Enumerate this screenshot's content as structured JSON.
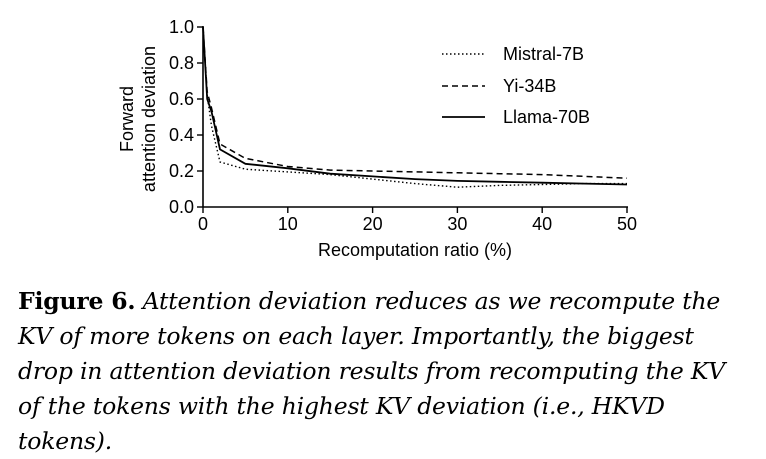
{
  "chart_data": {
    "type": "line",
    "xlabel": "Recomputation ratio (%)",
    "ylabel_lines": [
      "Forward",
      "attention deviation"
    ],
    "xlim": [
      0,
      50
    ],
    "ylim": [
      0.0,
      1.0
    ],
    "xticks": [
      "0",
      "10",
      "20",
      "30",
      "40",
      "50"
    ],
    "xtick_values": [
      0,
      10,
      20,
      30,
      40,
      50
    ],
    "yticks": [
      "0.0",
      "0.2",
      "0.4",
      "0.6",
      "0.8",
      "1.0"
    ],
    "ytick_values": [
      0.0,
      0.2,
      0.4,
      0.6,
      0.8,
      1.0
    ],
    "grid": false,
    "legend_position": "top-right",
    "series": [
      {
        "name": "Mistral-7B",
        "style": "dotted",
        "x": [
          0,
          0.5,
          1,
          2,
          5,
          10,
          15,
          20,
          25,
          30,
          35,
          40,
          45,
          50
        ],
        "y": [
          1.0,
          0.62,
          0.45,
          0.25,
          0.21,
          0.195,
          0.18,
          0.155,
          0.13,
          0.11,
          0.12,
          0.125,
          0.13,
          0.13
        ]
      },
      {
        "name": "Yi-34B",
        "style": "dashed",
        "x": [
          0,
          0.5,
          1,
          2,
          5,
          10,
          15,
          20,
          25,
          30,
          35,
          40,
          45,
          50
        ],
        "y": [
          1.0,
          0.64,
          0.55,
          0.35,
          0.27,
          0.225,
          0.205,
          0.2,
          0.195,
          0.19,
          0.185,
          0.18,
          0.17,
          0.16
        ]
      },
      {
        "name": "Llama-70B",
        "style": "solid",
        "x": [
          0,
          0.5,
          1,
          2,
          5,
          10,
          15,
          20,
          25,
          30,
          35,
          40,
          45,
          50
        ],
        "y": [
          1.0,
          0.6,
          0.53,
          0.32,
          0.24,
          0.215,
          0.185,
          0.17,
          0.155,
          0.145,
          0.14,
          0.135,
          0.13,
          0.125
        ]
      }
    ]
  },
  "caption": {
    "label": "Figure 6.",
    "text": "Attention deviation reduces as we recompute the KV of more tokens on each layer. Importantly, the biggest drop in attention deviation results from recomputing the KV of the tokens with the highest KV deviation (i.e., HKVD tokens)."
  }
}
